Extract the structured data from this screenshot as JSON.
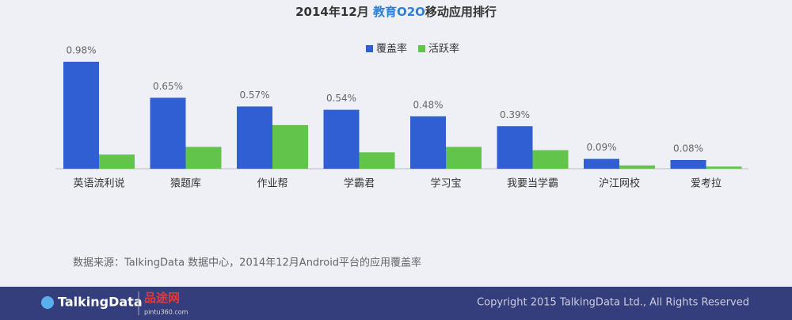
{
  "chart_data": {
    "type": "bar",
    "title_parts": [
      "2014年12月 ",
      "教育O2O",
      "移动应用排行"
    ],
    "categories": [
      "英语流利说",
      "猿题库",
      "作业帮",
      "学霸君",
      "学习宝",
      "我要当学霸",
      "沪江网校",
      "爱考拉"
    ],
    "series": [
      {
        "name": "覆盖率",
        "color": "#2f5fd3",
        "values": [
          0.98,
          0.65,
          0.57,
          0.54,
          0.48,
          0.39,
          0.09,
          0.08
        ],
        "value_labels": [
          "0.98%",
          "0.65%",
          "0.57%",
          "0.54%",
          "0.48%",
          "0.39%",
          "0.09%",
          "0.08%"
        ]
      },
      {
        "name": "活跃率",
        "color": "#62c44b",
        "values": [
          0.13,
          0.2,
          0.4,
          0.15,
          0.2,
          0.17,
          0.03,
          0.02
        ]
      }
    ],
    "source": "数据来源：TalkingData 数据中心，2014年12月Android平台的应用覆盖率"
  },
  "footer": {
    "logo": "TalkingData",
    "partner": "品途网",
    "partner_url": "pintu360.com",
    "copyright": "Copyright 2015 TalkingData Ltd., All Rights Reserved"
  }
}
